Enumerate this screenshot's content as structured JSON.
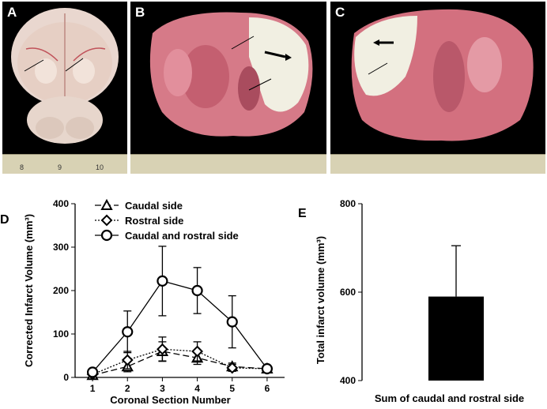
{
  "photos": {
    "A": {
      "letter": "A",
      "ruler_labels": [
        "8",
        "9",
        "10"
      ]
    },
    "B": {
      "letter": "B"
    },
    "C": {
      "letter": "C"
    }
  },
  "colors": {
    "tissue_pink": "#d8788a",
    "infarct_white": "#f2f0e4",
    "background_black": "#000000",
    "bar_fill": "#000000"
  },
  "chart_data": [
    {
      "panel": "D",
      "type": "line",
      "x": [
        1,
        2,
        3,
        4,
        5,
        6
      ],
      "xlabel": "Coronal Section Number",
      "ylabel": "Corrected Infarct Volume (mm³)",
      "xticks": [
        "1",
        "2",
        "3",
        "4",
        "5",
        "6"
      ],
      "yticks": [
        "0",
        "100",
        "200",
        "300",
        "400"
      ],
      "xlim": [
        0.5,
        6.5
      ],
      "ylim": [
        0,
        400
      ],
      "legend_position": "top-left",
      "series": [
        {
          "name": "Caudal side",
          "marker": "triangle",
          "line_style": "dashed",
          "values": [
            5,
            25,
            60,
            45,
            25,
            20
          ],
          "errors": [
            2,
            12,
            22,
            15,
            8,
            4
          ]
        },
        {
          "name": "Rostral side",
          "marker": "diamond",
          "line_style": "dotted",
          "values": [
            7,
            40,
            65,
            60,
            22,
            20
          ],
          "errors": [
            3,
            20,
            28,
            22,
            8,
            4
          ]
        },
        {
          "name": "Caudal and rostral side",
          "marker": "circle",
          "line_style": "solid",
          "values": [
            12,
            105,
            222,
            200,
            128,
            20
          ],
          "errors": [
            5,
            48,
            80,
            53,
            60,
            5
          ]
        }
      ]
    },
    {
      "panel": "E",
      "type": "bar",
      "categories": [
        "Sum of caudal and rostral side"
      ],
      "values": [
        590
      ],
      "errors": [
        115
      ],
      "ylabel": "Total infarct volume (mm³)",
      "yticks": [
        "400",
        "600",
        "800"
      ],
      "ylim": [
        400,
        800
      ],
      "grid": false
    }
  ]
}
